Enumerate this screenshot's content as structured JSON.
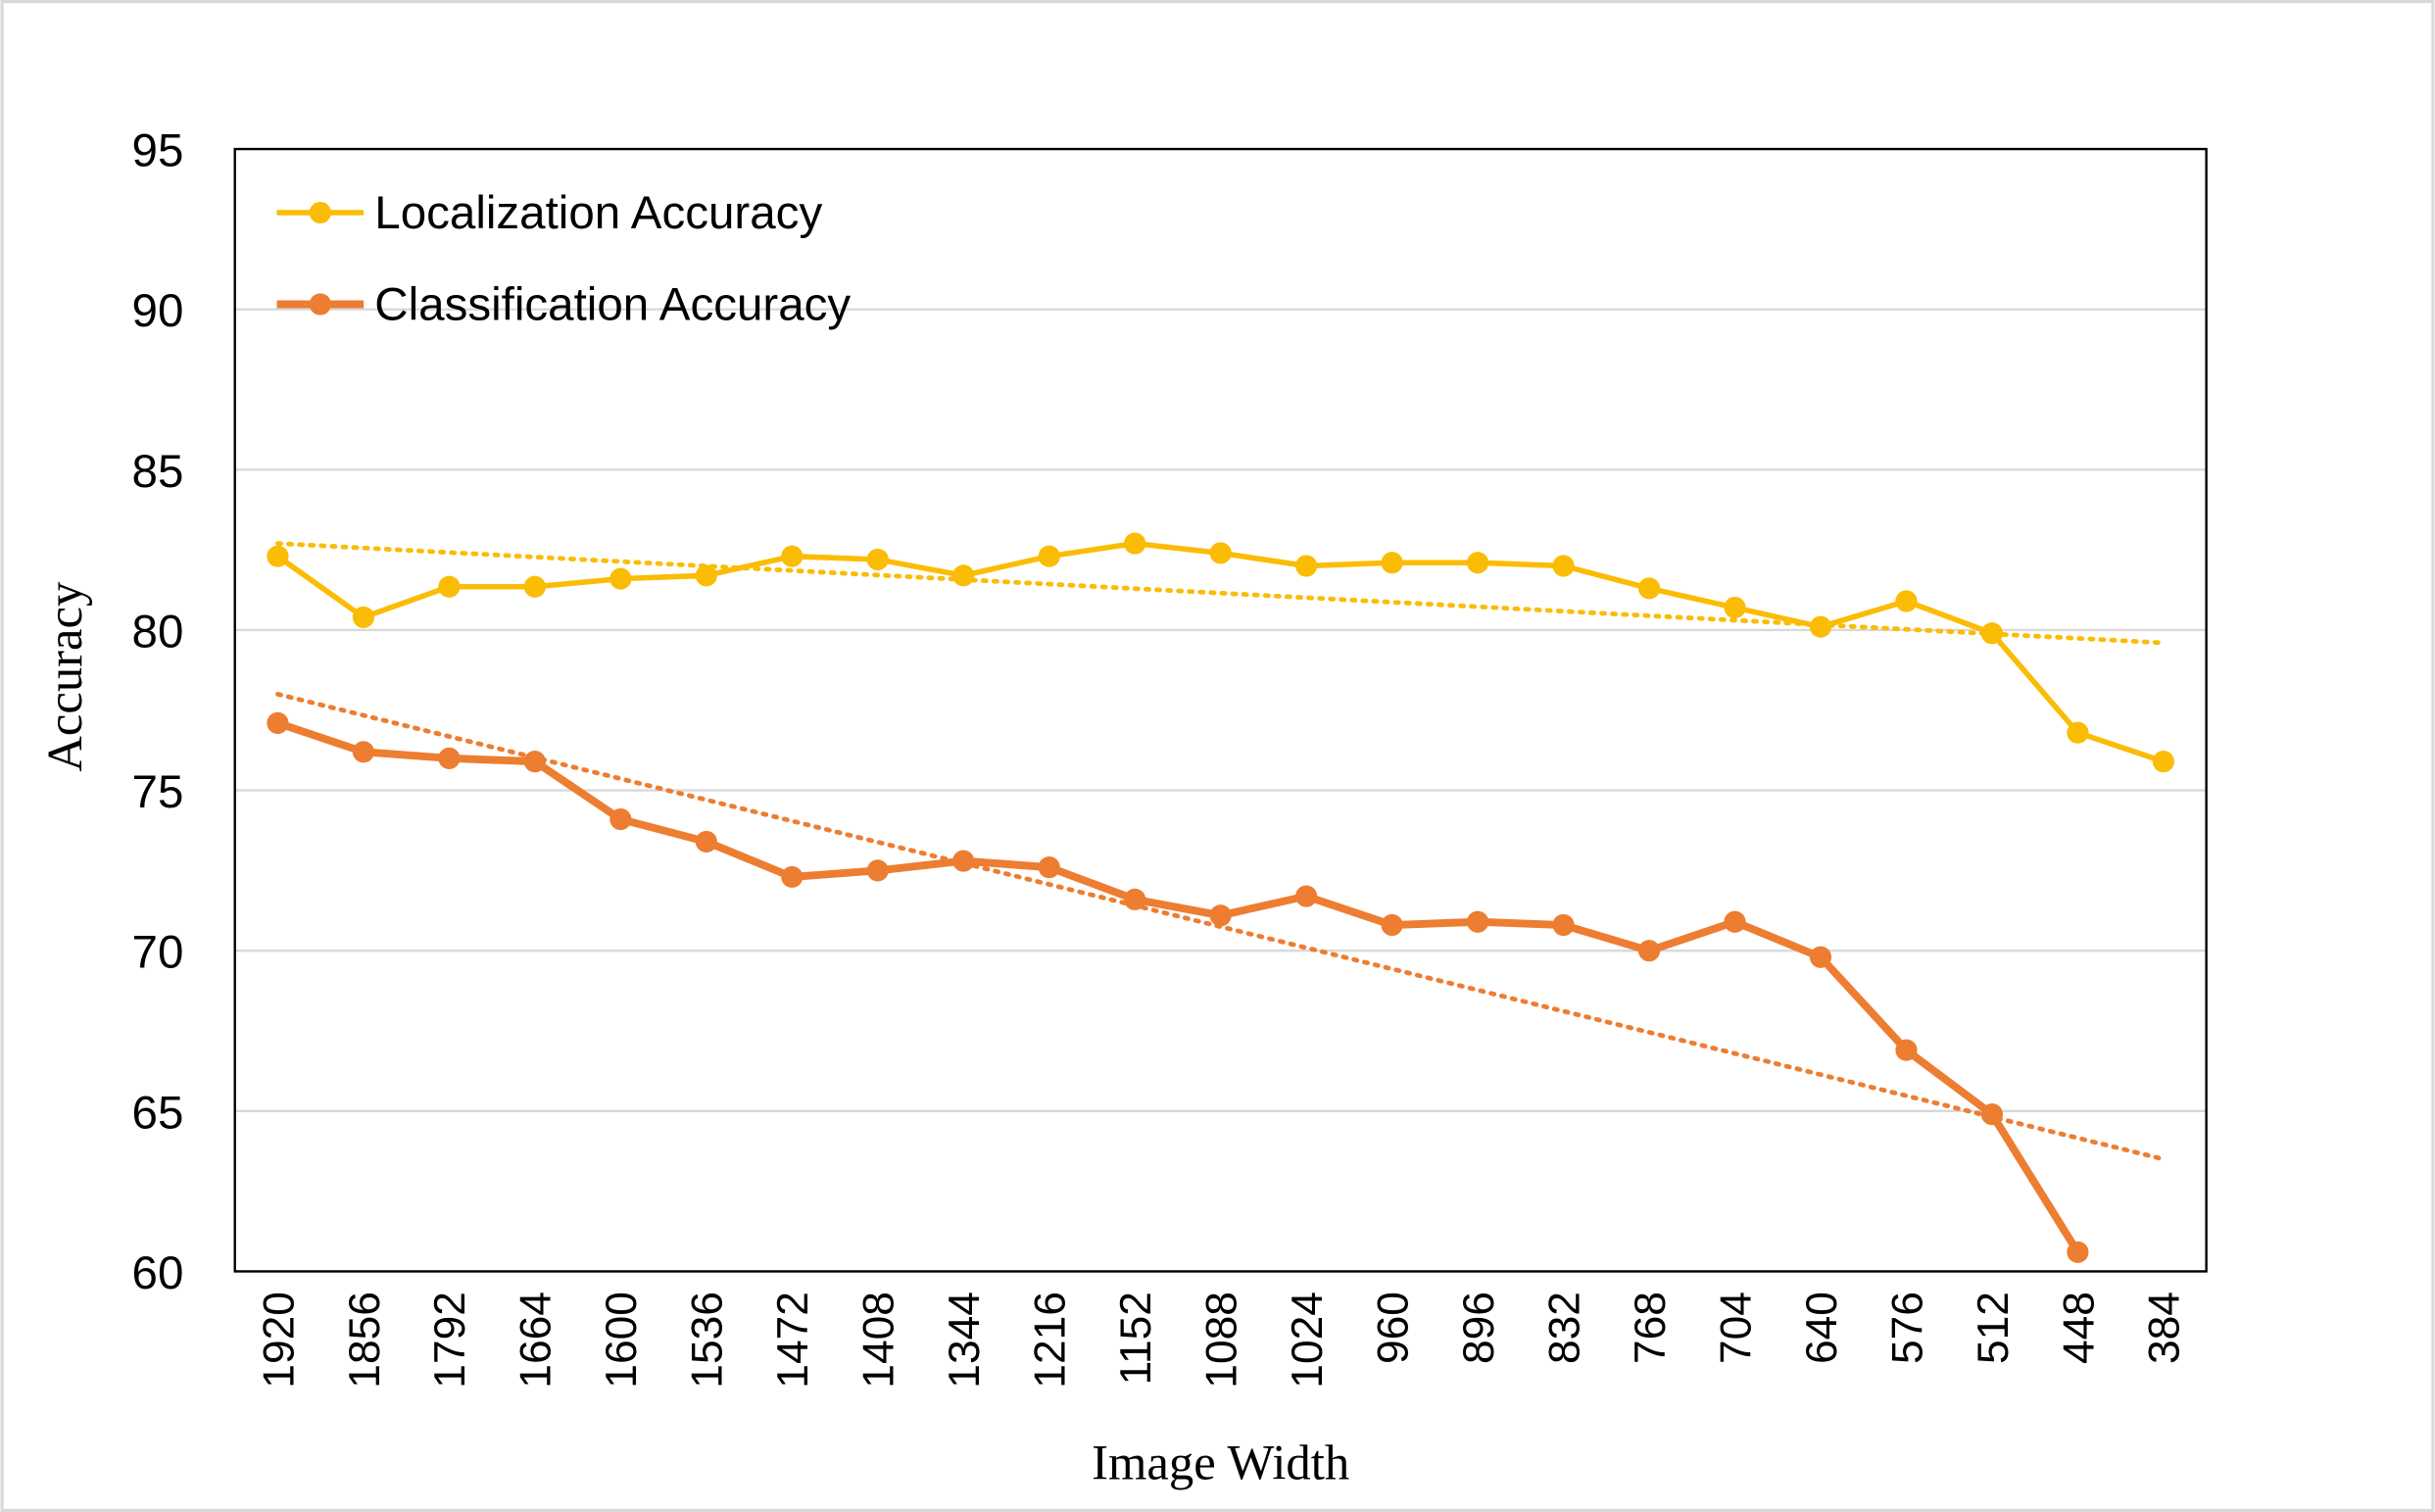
{
  "chart_data": {
    "type": "line",
    "x_label": "Image Width",
    "y_label": "Accuracy",
    "categories": [
      "1920",
      "1856",
      "1792",
      "1664",
      "1600",
      "1536",
      "1472",
      "1408",
      "1344",
      "1216",
      "1152",
      "1088",
      "1024",
      "960",
      "896",
      "832",
      "768",
      "704",
      "640",
      "576",
      "512",
      "448",
      "384"
    ],
    "series": [
      {
        "name": "Localization Accuracy",
        "color": "#fbbc05",
        "width": 3.5,
        "values": [
          82.3,
          80.4,
          81.35,
          81.35,
          81.6,
          81.7,
          82.3,
          82.2,
          81.7,
          82.3,
          82.7,
          82.4,
          82.0,
          82.1,
          82.1,
          82.0,
          81.3,
          80.7,
          80.1,
          80.9,
          79.9,
          76.8,
          75.9
        ],
        "trend": [
          82.7,
          79.6
        ]
      },
      {
        "name": "Classification Accuracy",
        "color": "#ed7d31",
        "width": 5,
        "values": [
          77.1,
          76.2,
          76.0,
          75.9,
          74.1,
          73.4,
          72.3,
          72.5,
          72.8,
          72.6,
          71.6,
          71.1,
          71.7,
          70.8,
          70.9,
          70.8,
          70.0,
          70.9,
          69.8,
          66.9,
          64.9,
          60.6,
          null
        ],
        "trend": [
          78.0,
          63.5
        ]
      }
    ],
    "ylim": [
      60,
      95
    ],
    "yticks": [
      60,
      65,
      70,
      75,
      80,
      85,
      90,
      95
    ],
    "grid": true,
    "legend": "upper-left"
  }
}
